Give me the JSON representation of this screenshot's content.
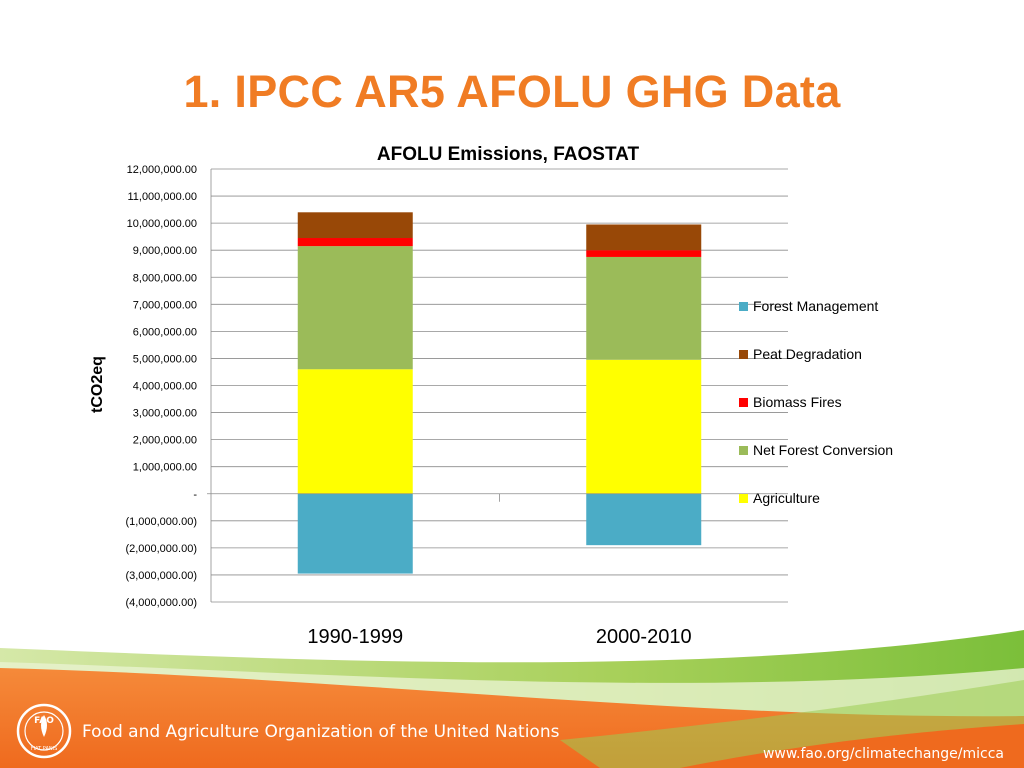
{
  "slide": {
    "title": "1. IPCC AR5 AFOLU GHG Data"
  },
  "footer": {
    "organization": "Food and Agriculture Organization of the United Nations",
    "url": "www.fao.org/climatechange/micca",
    "logo_text": "FAO",
    "logo_motto": "FIAT PANIS"
  },
  "colors": {
    "title": "#f07c24",
    "footer_orange": "#f37021",
    "footer_green": "#8dc63f"
  },
  "chart_data": {
    "type": "bar",
    "stacked": true,
    "title": "AFOLU Emissions, FAOSTAT",
    "ylabel": "tCO2eq",
    "xlabel": "",
    "ylim": [
      -4000000,
      12000000
    ],
    "ytick_step": 1000000,
    "yticks": [
      "12,000,000.00",
      "11,000,000.00",
      "10,000,000.00",
      "9,000,000.00",
      "8,000,000.00",
      "7,000,000.00",
      "6,000,000.00",
      "5,000,000.00",
      "4,000,000.00",
      "3,000,000.00",
      "2,000,000.00",
      "1,000,000.00",
      "-",
      "(1,000,000.00)",
      "(2,000,000.00)",
      "(3,000,000.00)",
      "(4,000,000.00)"
    ],
    "categories": [
      "1990-1999",
      "2000-2010"
    ],
    "grid": true,
    "legend_position": "right",
    "series": [
      {
        "name": "Agriculture",
        "color": "#ffff00",
        "values": [
          4600000,
          4950000
        ]
      },
      {
        "name": "Net Forest Conversion",
        "color": "#9bbb59",
        "values": [
          4550000,
          3800000
        ]
      },
      {
        "name": "Biomass Fires",
        "color": "#ff0000",
        "values": [
          300000,
          250000
        ]
      },
      {
        "name": "Peat Degradation",
        "color": "#984807",
        "values": [
          950000,
          950000
        ]
      },
      {
        "name": "Forest Management",
        "color": "#4bacc6",
        "values": [
          -2950000,
          -1900000
        ]
      }
    ],
    "legend_order": [
      "Forest Management",
      "Peat Degradation",
      "Biomass Fires",
      "Net Forest Conversion",
      "Agriculture"
    ]
  }
}
